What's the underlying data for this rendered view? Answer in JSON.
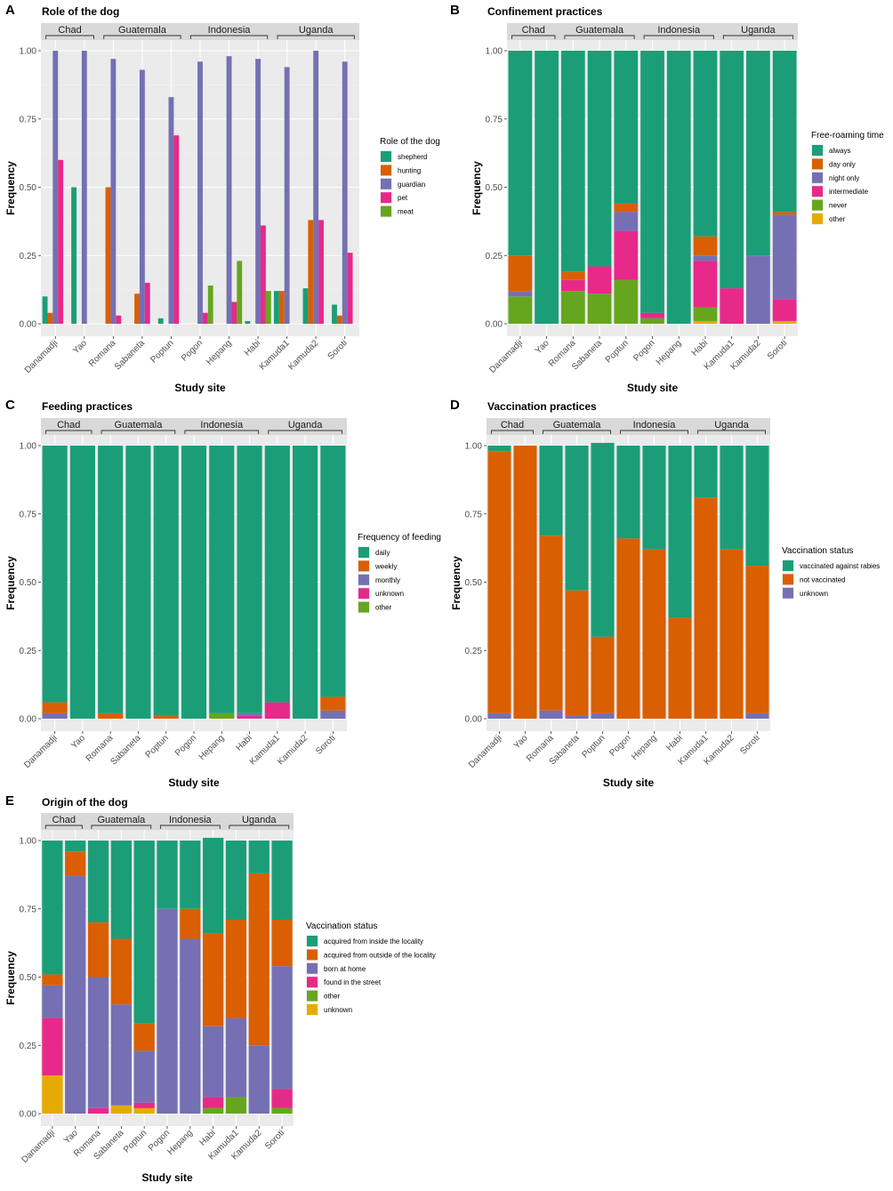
{
  "site_order": [
    "Danamadji",
    "Yao",
    "Romana",
    "Sabaneta",
    "Poptun",
    "Pogon",
    "Hepang",
    "Habi",
    "Kamuda1",
    "Kamuda2",
    "Soroti"
  ],
  "chart_data": [
    {
      "id": "A",
      "letter": "A",
      "type": "bar",
      "mode": "grouped",
      "title": "Role of the dog",
      "xlabel": "Study site",
      "ylabel": "Frequency",
      "ylim": [
        0,
        1
      ],
      "yticks": [
        "0.00",
        "0.25",
        "0.50",
        "0.75",
        "1.00"
      ],
      "grid": true,
      "legend_title": "Role of the dog",
      "countries": [
        {
          "name": "Chad",
          "sites": [
            "Danamadji",
            "Yao"
          ]
        },
        {
          "name": "Guatemala",
          "sites": [
            "Romana",
            "Sabaneta",
            "Poptun"
          ]
        },
        {
          "name": "Indonesia",
          "sites": [
            "Pogon",
            "Hepang",
            "Habi"
          ]
        },
        {
          "name": "Uganda",
          "sites": [
            "Kamuda1",
            "Kamuda2",
            "Soroti"
          ]
        }
      ],
      "series": [
        {
          "name": "shepherd",
          "color": "#1b9e77",
          "values": [
            0.1,
            0.5,
            0,
            0,
            0.02,
            0,
            0,
            0.01,
            0.12,
            0.13,
            0.07
          ]
        },
        {
          "name": "hunting",
          "color": "#d95f02",
          "values": [
            0.04,
            0,
            0.5,
            0.11,
            0,
            0,
            0,
            0,
            0.12,
            0.38,
            0.03
          ]
        },
        {
          "name": "guardian",
          "color": "#7570b3",
          "values": [
            1.0,
            1.0,
            0.97,
            0.93,
            0.83,
            0.96,
            0.98,
            0.97,
            0.94,
            1.0,
            0.96
          ]
        },
        {
          "name": "pet",
          "color": "#e7298a",
          "values": [
            0.6,
            0,
            0.03,
            0.15,
            0.69,
            0.04,
            0.08,
            0.36,
            0,
            0.38,
            0.26
          ]
        },
        {
          "name": "meat",
          "color": "#66a61e",
          "values": [
            0,
            0,
            0,
            0,
            0,
            0.14,
            0.23,
            0.12,
            0,
            0,
            0
          ]
        }
      ]
    },
    {
      "id": "B",
      "letter": "B",
      "type": "bar",
      "mode": "stacked",
      "title": "Confinement practices",
      "xlabel": "Study site",
      "ylabel": "Frequency",
      "ylim": [
        0,
        1
      ],
      "yticks": [
        "0.00",
        "0.25",
        "0.50",
        "0.75",
        "1.00"
      ],
      "grid": true,
      "legend_title": "Free-roaming time",
      "countries": [
        {
          "name": "Chad",
          "sites": [
            "Danamadji",
            "Yao"
          ]
        },
        {
          "name": "Guatemala",
          "sites": [
            "Romana",
            "Sabaneta",
            "Poptun"
          ]
        },
        {
          "name": "Indonesia",
          "sites": [
            "Pogon",
            "Hepang",
            "Habi"
          ]
        },
        {
          "name": "Uganda",
          "sites": [
            "Kamuda1",
            "Kamuda2",
            "Soroti"
          ]
        }
      ],
      "series": [
        {
          "name": "always",
          "color": "#1b9e77",
          "values": [
            0.75,
            1.0,
            0.81,
            0.79,
            0.56,
            0.96,
            1.0,
            0.68,
            0.87,
            0.75,
            0.59
          ]
        },
        {
          "name": "day only",
          "color": "#d95f02",
          "values": [
            0.13,
            0,
            0.03,
            0,
            0.03,
            0,
            0,
            0.07,
            0,
            0,
            0.01
          ]
        },
        {
          "name": "night only",
          "color": "#7570b3",
          "values": [
            0.02,
            0,
            0,
            0,
            0.07,
            0,
            0,
            0.02,
            0,
            0.25,
            0.31
          ]
        },
        {
          "name": "intermediate",
          "color": "#e7298a",
          "values": [
            0,
            0,
            0.04,
            0.1,
            0.18,
            0.02,
            0,
            0.17,
            0.13,
            0,
            0.08
          ]
        },
        {
          "name": "never",
          "color": "#66a61e",
          "values": [
            0.1,
            0,
            0.12,
            0.11,
            0.16,
            0.02,
            0,
            0.05,
            0,
            0,
            0
          ]
        },
        {
          "name": "other",
          "color": "#e6ab02",
          "values": [
            0,
            0,
            0,
            0,
            0,
            0,
            0,
            0.01,
            0,
            0,
            0.01
          ]
        }
      ]
    },
    {
      "id": "C",
      "letter": "C",
      "type": "bar",
      "mode": "stacked",
      "title": "Feeding practices",
      "xlabel": "Study site",
      "ylabel": "Frequency",
      "ylim": [
        0,
        1
      ],
      "yticks": [
        "0.00",
        "0.25",
        "0.50",
        "0.75",
        "1.00"
      ],
      "grid": true,
      "legend_title": "Frequency of feeding",
      "countries": [
        {
          "name": "Chad",
          "sites": [
            "Danamadji",
            "Yao"
          ]
        },
        {
          "name": "Guatemala",
          "sites": [
            "Romana",
            "Sabaneta",
            "Poptun"
          ]
        },
        {
          "name": "Indonesia",
          "sites": [
            "Pogon",
            "Hepang",
            "Habi"
          ]
        },
        {
          "name": "Uganda",
          "sites": [
            "Kamuda1",
            "Kamuda2",
            "Soroti"
          ]
        }
      ],
      "series": [
        {
          "name": "daily",
          "color": "#1b9e77",
          "values": [
            0.94,
            1.0,
            0.98,
            1.0,
            0.99,
            1.0,
            0.98,
            0.98,
            0.94,
            1.0,
            0.92
          ]
        },
        {
          "name": "weekly",
          "color": "#d95f02",
          "values": [
            0.04,
            0,
            0.02,
            0,
            0.01,
            0,
            0,
            0,
            0,
            0,
            0.05
          ]
        },
        {
          "name": "monthly",
          "color": "#7570b3",
          "values": [
            0.02,
            0,
            0,
            0,
            0,
            0,
            0,
            0.01,
            0,
            0,
            0.03
          ]
        },
        {
          "name": "unknown",
          "color": "#e7298a",
          "values": [
            0,
            0,
            0,
            0,
            0,
            0,
            0,
            0.01,
            0.06,
            0,
            0
          ]
        },
        {
          "name": "other",
          "color": "#66a61e",
          "values": [
            0,
            0,
            0,
            0,
            0,
            0,
            0.02,
            0,
            0,
            0,
            0
          ]
        }
      ]
    },
    {
      "id": "D",
      "letter": "D",
      "type": "bar",
      "mode": "stacked",
      "title": "Vaccination practices",
      "xlabel": "Study site",
      "ylabel": "Frequency",
      "ylim": [
        0,
        1
      ],
      "yticks": [
        "0.00",
        "0.25",
        "0.50",
        "0.75",
        "1.00"
      ],
      "grid": true,
      "legend_title": "Vaccination status",
      "countries": [
        {
          "name": "Chad",
          "sites": [
            "Danamadji",
            "Yao"
          ]
        },
        {
          "name": "Guatemala",
          "sites": [
            "Romana",
            "Sabaneta",
            "Poptun"
          ]
        },
        {
          "name": "Indonesia",
          "sites": [
            "Pogon",
            "Hepang",
            "Habi"
          ]
        },
        {
          "name": "Uganda",
          "sites": [
            "Kamuda1",
            "Kamuda2",
            "Soroti"
          ]
        }
      ],
      "series": [
        {
          "name": "vaccinated against rabies",
          "color": "#1b9e77",
          "values": [
            0.02,
            0,
            0.33,
            0.53,
            0.71,
            0.34,
            0.38,
            0.63,
            0.19,
            0.38,
            0.44
          ]
        },
        {
          "name": "not vaccinated",
          "color": "#d95f02",
          "values": [
            0.96,
            1.0,
            0.64,
            0.46,
            0.28,
            0.66,
            0.62,
            0.37,
            0.81,
            0.62,
            0.54
          ]
        },
        {
          "name": "unknown",
          "color": "#7570b3",
          "values": [
            0.02,
            0,
            0.03,
            0.01,
            0.02,
            0,
            0,
            0,
            0,
            0,
            0.02
          ]
        }
      ]
    },
    {
      "id": "E",
      "letter": "E",
      "type": "bar",
      "mode": "stacked",
      "title": "Origin of the dog",
      "xlabel": "Study site",
      "ylabel": "Frequency",
      "ylim": [
        0,
        1
      ],
      "yticks": [
        "0.00",
        "0.25",
        "0.50",
        "0.75",
        "1.00"
      ],
      "grid": true,
      "legend_title": "Vaccination status",
      "countries": [
        {
          "name": "Chad",
          "sites": [
            "Danamadji",
            "Yao"
          ]
        },
        {
          "name": "Guatemala",
          "sites": [
            "Romana",
            "Sabaneta",
            "Poptun"
          ]
        },
        {
          "name": "Indonesia",
          "sites": [
            "Pogon",
            "Hepang",
            "Habi"
          ]
        },
        {
          "name": "Uganda",
          "sites": [
            "Kamuda1",
            "Kamuda2",
            "Soroti"
          ]
        }
      ],
      "series": [
        {
          "name": "acquired from inside the locality",
          "color": "#1b9e77",
          "values": [
            0.49,
            0.04,
            0.3,
            0.36,
            0.67,
            0.25,
            0.25,
            0.35,
            0.29,
            0.12,
            0.29
          ]
        },
        {
          "name": "acquired from outside of the locality",
          "color": "#d95f02",
          "values": [
            0.04,
            0.09,
            0.2,
            0.24,
            0.1,
            0,
            0.11,
            0.34,
            0.36,
            0.63,
            0.17
          ]
        },
        {
          "name": "born at home",
          "color": "#7570b3",
          "values": [
            0.12,
            0.87,
            0.48,
            0.37,
            0.19,
            0.75,
            0.64,
            0.26,
            0.29,
            0.25,
            0.45
          ]
        },
        {
          "name": "found in the street",
          "color": "#e7298a",
          "values": [
            0.21,
            0,
            0.02,
            0,
            0.02,
            0,
            0,
            0.04,
            0,
            0,
            0.07
          ]
        },
        {
          "name": "other",
          "color": "#66a61e",
          "values": [
            0,
            0,
            0,
            0,
            0,
            0,
            0,
            0.02,
            0.06,
            0,
            0.02
          ]
        },
        {
          "name": "unknown",
          "color": "#e6ab02",
          "values": [
            0.14,
            0,
            0,
            0.03,
            0.02,
            0,
            0,
            0,
            0,
            0,
            0
          ]
        }
      ]
    }
  ]
}
